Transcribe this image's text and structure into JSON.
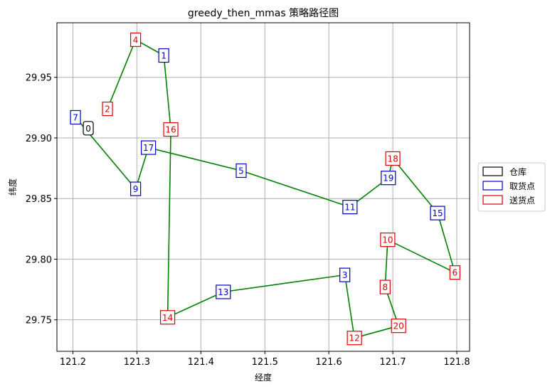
{
  "chart_data": {
    "type": "line",
    "title": "greedy_then_mmas 策略路径图",
    "xlabel": "经度",
    "ylabel": "纬度",
    "xlim": [
      121.175,
      121.82
    ],
    "ylim": [
      29.724,
      29.995
    ],
    "xticks": [
      121.2,
      121.3,
      121.4,
      121.5,
      121.6,
      121.7,
      121.8
    ],
    "xtick_labels": [
      "121.2",
      "121.3",
      "121.4",
      "121.5",
      "121.6",
      "121.7",
      "121.8"
    ],
    "yticks": [
      29.75,
      29.8,
      29.85,
      29.9,
      29.95
    ],
    "ytick_labels": [
      "29.75",
      "29.80",
      "29.85",
      "29.90",
      "29.95"
    ],
    "grid": true,
    "legend_position": "outside-right",
    "legend": [
      {
        "label": "仓库",
        "color": "#000000"
      },
      {
        "label": "取货点",
        "color": "#0000cc"
      },
      {
        "label": "送货点",
        "color": "#dd0000"
      }
    ],
    "route_color": "#008000",
    "nodes": [
      {
        "id": "0",
        "x": 121.224,
        "y": 29.908,
        "type": "depot"
      },
      {
        "id": "7",
        "x": 121.204,
        "y": 29.917,
        "type": "pickup"
      },
      {
        "id": "2",
        "x": 121.254,
        "y": 29.924,
        "type": "delivery"
      },
      {
        "id": "4",
        "x": 121.298,
        "y": 29.981,
        "type": "delivery"
      },
      {
        "id": "1",
        "x": 121.342,
        "y": 29.968,
        "type": "pickup"
      },
      {
        "id": "16",
        "x": 121.353,
        "y": 29.907,
        "type": "delivery"
      },
      {
        "id": "14",
        "x": 121.348,
        "y": 29.752,
        "type": "delivery"
      },
      {
        "id": "13",
        "x": 121.435,
        "y": 29.773,
        "type": "pickup"
      },
      {
        "id": "3",
        "x": 121.625,
        "y": 29.787,
        "type": "pickup"
      },
      {
        "id": "12",
        "x": 121.64,
        "y": 29.735,
        "type": "delivery"
      },
      {
        "id": "20",
        "x": 121.709,
        "y": 29.745,
        "type": "delivery"
      },
      {
        "id": "8",
        "x": 121.688,
        "y": 29.777,
        "type": "delivery"
      },
      {
        "id": "10",
        "x": 121.692,
        "y": 29.816,
        "type": "delivery"
      },
      {
        "id": "6",
        "x": 121.797,
        "y": 29.789,
        "type": "delivery"
      },
      {
        "id": "15",
        "x": 121.77,
        "y": 29.838,
        "type": "pickup"
      },
      {
        "id": "18",
        "x": 121.7,
        "y": 29.883,
        "type": "delivery"
      },
      {
        "id": "19",
        "x": 121.693,
        "y": 29.867,
        "type": "pickup"
      },
      {
        "id": "11",
        "x": 121.633,
        "y": 29.843,
        "type": "pickup"
      },
      {
        "id": "5",
        "x": 121.463,
        "y": 29.873,
        "type": "pickup"
      },
      {
        "id": "17",
        "x": 121.318,
        "y": 29.892,
        "type": "pickup"
      },
      {
        "id": "9",
        "x": 121.298,
        "y": 29.858,
        "type": "pickup"
      }
    ],
    "route_segments": [
      [
        [
          121.254,
          29.924
        ],
        [
          121.298,
          29.981
        ],
        [
          121.342,
          29.968
        ],
        [
          121.353,
          29.907
        ],
        [
          121.348,
          29.752
        ],
        [
          121.435,
          29.773
        ],
        [
          121.625,
          29.787
        ],
        [
          121.64,
          29.735
        ],
        [
          121.709,
          29.745
        ],
        [
          121.688,
          29.777
        ],
        [
          121.692,
          29.816
        ],
        [
          121.797,
          29.789
        ],
        [
          121.77,
          29.838
        ],
        [
          121.7,
          29.883
        ],
        [
          121.693,
          29.867
        ],
        [
          121.633,
          29.843
        ],
        [
          121.463,
          29.873
        ],
        [
          121.318,
          29.892
        ],
        [
          121.298,
          29.858
        ],
        [
          121.204,
          29.917
        ]
      ]
    ]
  }
}
